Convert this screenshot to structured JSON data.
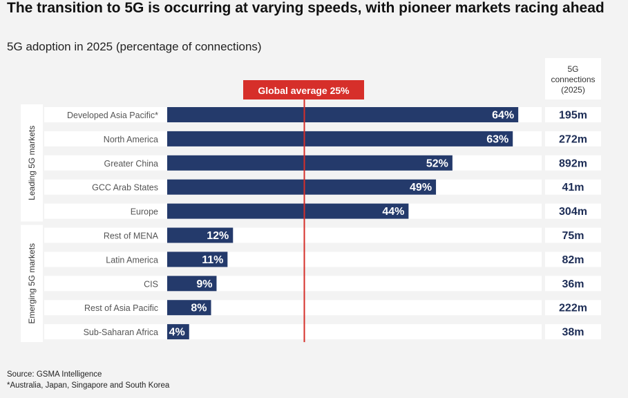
{
  "title": "The transition to 5G is occurring at varying speeds, with pioneer markets racing ahead",
  "subtitle": "5G adoption in 2025 (percentage of connections)",
  "colors": {
    "bar": "#243a6b",
    "average_line": "#d62f2a",
    "callout": "#d62f2a",
    "label_text": "#555555",
    "band": "#ffffff"
  },
  "chart_data": {
    "type": "bar",
    "orientation": "horizontal",
    "categories": [
      "Developed Asia Pacific*",
      "North America",
      "Greater China",
      "GCC Arab States",
      "Europe",
      "Rest of MENA",
      "Latin America",
      "CIS",
      "Rest of Asia Pacific",
      "Sub-Saharan Africa"
    ],
    "values": [
      64,
      63,
      52,
      49,
      44,
      12,
      11,
      9,
      8,
      4
    ],
    "value_labels": [
      "64%",
      "63%",
      "52%",
      "49%",
      "44%",
      "12%",
      "11%",
      "9%",
      "8%",
      "4%"
    ],
    "unit": "%",
    "xlim": [
      0,
      80
    ],
    "groups": [
      {
        "label": "Leading 5G markets",
        "count": 5
      },
      {
        "label": "Emerging 5G markets",
        "count": 5
      }
    ],
    "reference_line": {
      "value": 25,
      "label": "Global average 25%"
    },
    "side_column": {
      "header": [
        "5G",
        "connections",
        "(2025)"
      ],
      "values": [
        "195m",
        "272m",
        "892m",
        "41m",
        "304m",
        "75m",
        "82m",
        "36m",
        "222m",
        "38m"
      ]
    }
  },
  "footer": {
    "source": "Source: GSMA Intelligence",
    "note": "*Australia, Japan, Singapore and South Korea"
  }
}
